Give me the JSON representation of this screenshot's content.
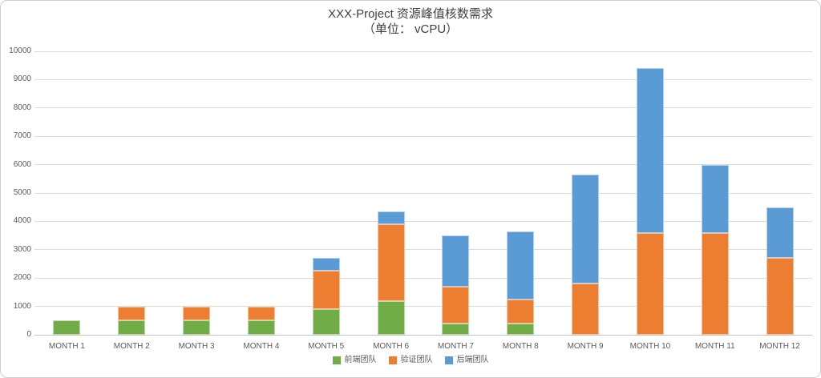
{
  "chart_data": {
    "type": "bar",
    "stacked": true,
    "title": "XXX-Project 资源峰值核数需求",
    "subtitle": "（单位： vCPU）",
    "categories": [
      "MONTH 1",
      "MONTH 2",
      "MONTH 3",
      "MONTH 4",
      "MONTH 5",
      "MONTH 6",
      "MONTH 7",
      "MONTH 8",
      "MONTH 9",
      "MONTH 10",
      "MONTH 11",
      "MONTH 12"
    ],
    "series": [
      {
        "name": "前端团队",
        "color": "#70AD47",
        "values": [
          500,
          500,
          500,
          500,
          900,
          1200,
          400,
          400,
          0,
          0,
          0,
          0
        ]
      },
      {
        "name": "验证团队",
        "color": "#ED7D31",
        "values": [
          0,
          500,
          500,
          500,
          1350,
          2700,
          1300,
          850,
          1800,
          3600,
          3600,
          2700
        ]
      },
      {
        "name": "后端团队",
        "color": "#5B9BD5",
        "values": [
          0,
          0,
          0,
          0,
          450,
          450,
          1800,
          2400,
          3850,
          5800,
          2400,
          1800
        ]
      }
    ],
    "stack_totals": [
      500,
      1000,
      1000,
      1000,
      2700,
      4350,
      3500,
      3650,
      5650,
      9400,
      6000,
      4500
    ],
    "ylim": [
      0,
      10000
    ],
    "ytick_step": 1000,
    "ytick_labels": [
      "0",
      "1000",
      "2000",
      "3000",
      "4000",
      "5000",
      "6000",
      "7000",
      "8000",
      "9000",
      "10000"
    ],
    "grid": true,
    "legend_position": "bottom",
    "xlabel": "",
    "ylabel": "",
    "style": {
      "title_color": "#404040",
      "axis_text_color": "#595959",
      "gridline_color": "#dcdcdc",
      "axis_line_color": "#c3c3c3",
      "background": "#ffffff"
    }
  }
}
